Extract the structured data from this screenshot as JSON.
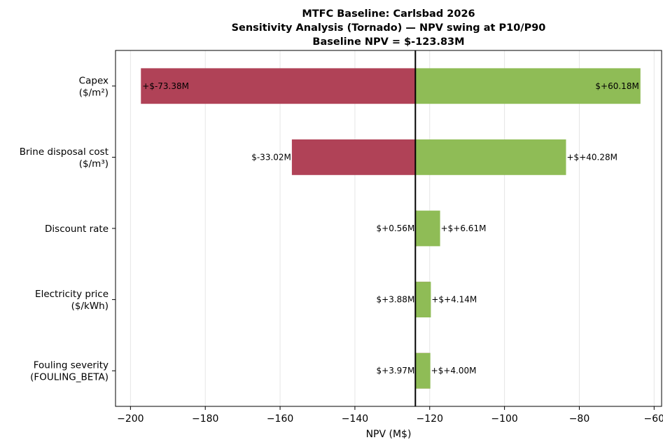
{
  "chart_data": {
    "type": "bar",
    "orientation": "horizontal",
    "title_lines": [
      "MTFC Baseline: Carlsbad 2026",
      "Sensitivity Analysis (Tornado) — NPV swing at P10/P90",
      "Baseline NPV = $-123.83M"
    ],
    "xlabel": "NPV (M$)",
    "ylabel": "",
    "baseline": -123.83,
    "xlim": [
      -204,
      -58
    ],
    "xticks": [
      -200,
      -180,
      -160,
      -140,
      -120,
      -100,
      -80,
      -60
    ],
    "xtick_labels": [
      "−200",
      "−180",
      "−160",
      "−140",
      "−120",
      "−100",
      "−80",
      "−60"
    ],
    "grid": "vertical",
    "colors": {
      "low": "#b04257",
      "high": "#8fbc56",
      "baseline_line": "#000000"
    },
    "categories": [
      {
        "lines": [
          "Capex",
          "($/m²)"
        ],
        "low_end": -197.21,
        "high_end": -63.65,
        "low_label": "+$-73.38M",
        "high_label": "$+60.18M"
      },
      {
        "lines": [
          "Brine disposal cost",
          "($/m³)"
        ],
        "low_end": -156.85,
        "high_end": -83.55,
        "low_label": "$-33.02M",
        "high_label": "+$+40.28M"
      },
      {
        "lines": [
          "Discount rate"
        ],
        "low_end": -123.27,
        "high_end": -117.22,
        "low_label": "$+0.56M",
        "high_label": "+$+6.61M"
      },
      {
        "lines": [
          "Electricity price",
          "($/kWh)"
        ],
        "low_end": -119.95,
        "high_end": -119.69,
        "low_label": "$+3.88M",
        "high_label": "+$+4.14M"
      },
      {
        "lines": [
          "Fouling severity",
          "(FOULING_BETA)"
        ],
        "low_end": -119.86,
        "high_end": -119.83,
        "low_label": "$+3.97M",
        "high_label": "+$+4.00M"
      }
    ]
  }
}
